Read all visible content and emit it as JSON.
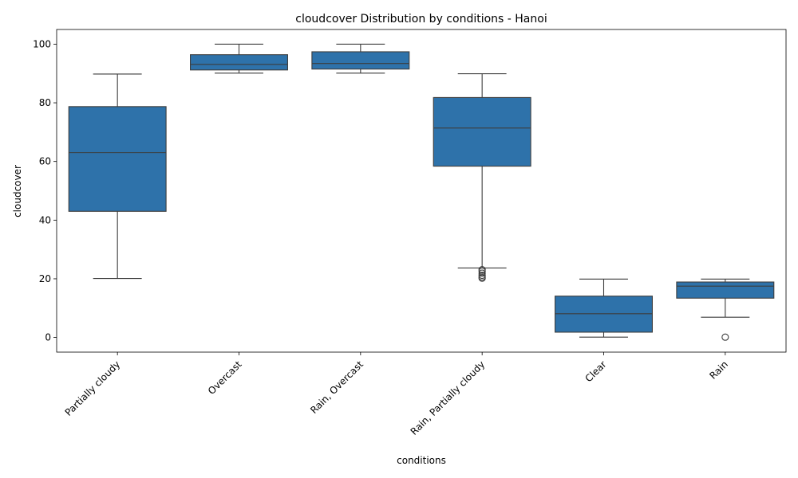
{
  "chart_data": {
    "type": "box",
    "title": "cloudcover Distribution by conditions - Hanoi",
    "xlabel": "conditions",
    "ylabel": "cloudcover",
    "ylim": [
      -5,
      105
    ],
    "yticks": [
      0,
      20,
      40,
      60,
      80,
      100
    ],
    "grid": false,
    "legend": "none",
    "colors": {
      "box_fill": "#2e72aa",
      "line": "#3d3d3d",
      "axis": "#000000"
    },
    "categories": [
      "Partially cloudy",
      "Overcast",
      "Rain, Overcast",
      "Rain, Partially cloudy",
      "Clear",
      "Rain"
    ],
    "boxes": [
      {
        "category": "Partially cloudy",
        "whisker_low": 20.1,
        "q1": 43.0,
        "median": 63.0,
        "q3": 78.7,
        "whisker_high": 89.8,
        "outliers": []
      },
      {
        "category": "Overcast",
        "whisker_low": 90.1,
        "q1": 91.2,
        "median": 93.1,
        "q3": 96.4,
        "whisker_high": 100.0,
        "outliers": []
      },
      {
        "category": "Rain, Overcast",
        "whisker_low": 90.1,
        "q1": 91.5,
        "median": 93.4,
        "q3": 97.4,
        "whisker_high": 100.0,
        "outliers": []
      },
      {
        "category": "Rain, Partially cloudy",
        "whisker_low": 23.7,
        "q1": 58.4,
        "median": 71.4,
        "q3": 81.8,
        "whisker_high": 89.9,
        "outliers": [
          23.1,
          22.6,
          21.9,
          21.2,
          20.6,
          20.2
        ]
      },
      {
        "category": "Clear",
        "whisker_low": 0.1,
        "q1": 1.8,
        "median": 8.1,
        "q3": 14.1,
        "whisker_high": 19.9,
        "outliers": []
      },
      {
        "category": "Rain",
        "whisker_low": 6.9,
        "q1": 13.4,
        "median": 17.5,
        "q3": 18.9,
        "whisker_high": 19.9,
        "outliers": [
          0.1
        ]
      }
    ]
  }
}
